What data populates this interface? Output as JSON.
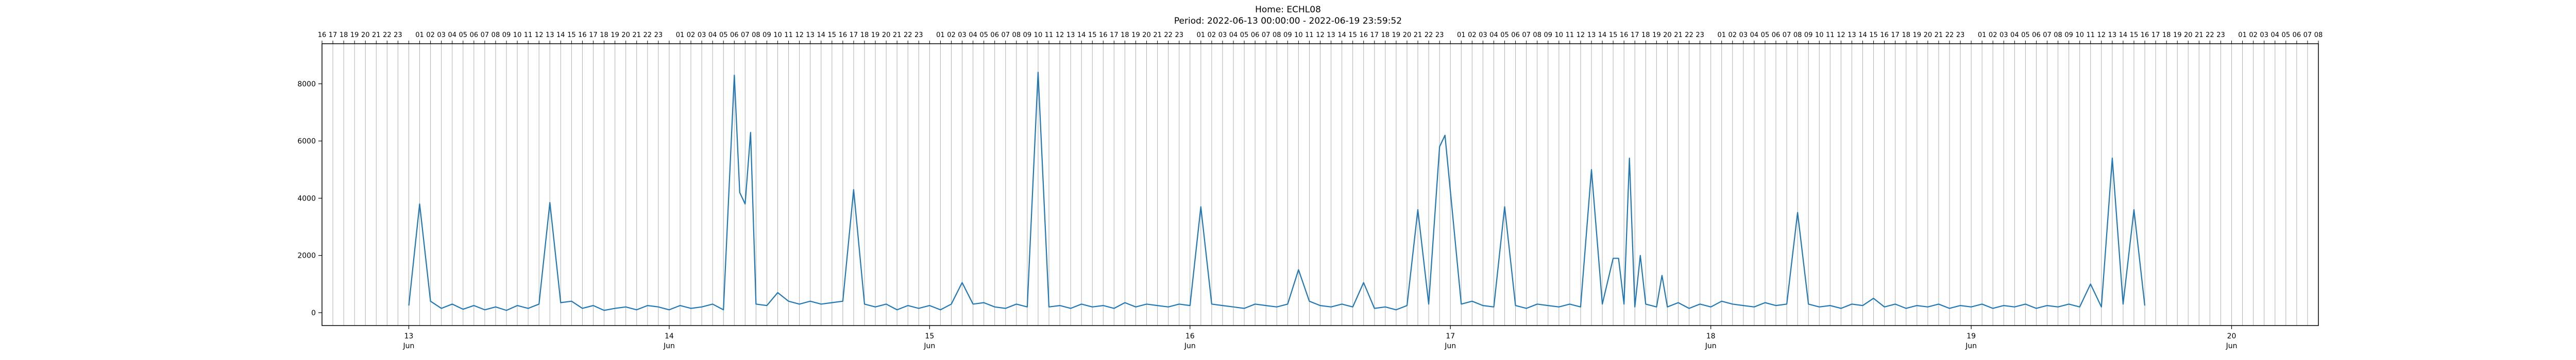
{
  "chart_data": {
    "type": "line",
    "title": "Home: ECHL08",
    "subtitle": "Period: 2022-06-13 00:00:00 - 2022-06-19 23:59:52",
    "xlabel": "",
    "ylabel": "",
    "xlim": [
      "2022-06-12 16:00",
      "2022-06-20 08:00"
    ],
    "ylim": [
      -450,
      9400
    ],
    "grid": "vertical hourly lines",
    "legend": "none",
    "line_color": "#1f77b4",
    "y_ticks": [
      0,
      2000,
      4000,
      6000,
      8000
    ],
    "x_ticks": [
      {
        "day": "13",
        "month": "Jun",
        "date": "2022-06-13 00:00"
      },
      {
        "day": "14",
        "month": "Jun",
        "date": "2022-06-14 00:00"
      },
      {
        "day": "15",
        "month": "Jun",
        "date": "2022-06-15 00:00"
      },
      {
        "day": "16",
        "month": "Jun",
        "date": "2022-06-16 00:00"
      },
      {
        "day": "17",
        "month": "Jun",
        "date": "2022-06-17 00:00"
      },
      {
        "day": "18",
        "month": "Jun",
        "date": "2022-06-18 00:00"
      },
      {
        "day": "19",
        "month": "Jun",
        "date": "2022-06-19 00:00"
      },
      {
        "day": "20",
        "month": "Jun",
        "date": "2022-06-20 00:00"
      }
    ],
    "top_axis_hours": [
      "16",
      "17",
      "18",
      "19",
      "20",
      "21",
      "22",
      "23",
      "",
      "01",
      "02",
      "03",
      "04",
      "05",
      "06",
      "07",
      "08",
      "09",
      "10",
      "11",
      "12",
      "13",
      "14",
      "15",
      "16",
      "17",
      "18",
      "19",
      "20",
      "21",
      "22",
      "23",
      "",
      "01",
      "02",
      "03",
      "04",
      "05",
      "06",
      "07",
      "08",
      "09",
      "10",
      "11",
      "12",
      "13",
      "14",
      "15",
      "16",
      "17",
      "18",
      "19",
      "20",
      "21",
      "22",
      "23",
      "",
      "01",
      "02",
      "03",
      "04",
      "05",
      "06",
      "07",
      "08",
      "09",
      "10",
      "11",
      "12",
      "13",
      "14",
      "15",
      "16",
      "17",
      "18",
      "19",
      "20",
      "21",
      "22",
      "23",
      "",
      "01",
      "02",
      "03",
      "04",
      "05",
      "06",
      "07",
      "08",
      "09",
      "10",
      "11",
      "12",
      "13",
      "14",
      "15",
      "16",
      "17",
      "18",
      "19",
      "20",
      "21",
      "22",
      "23",
      "",
      "01",
      "02",
      "03",
      "04",
      "05",
      "06",
      "07",
      "08",
      "09",
      "10",
      "11",
      "12",
      "13",
      "14",
      "15",
      "16",
      "17",
      "18",
      "19",
      "20",
      "21",
      "22",
      "23",
      "",
      "01",
      "02",
      "03",
      "04",
      "05",
      "06",
      "07",
      "08",
      "09",
      "10",
      "11",
      "12",
      "13",
      "14",
      "15",
      "16",
      "17",
      "18",
      "19",
      "20",
      "21",
      "22",
      "23",
      "",
      "01",
      "02",
      "03",
      "04",
      "05",
      "06",
      "07",
      "08",
      "09",
      "10",
      "11",
      "12",
      "13",
      "14",
      "15",
      "16",
      "17",
      "18",
      "19",
      "20",
      "21",
      "22",
      "23",
      "",
      "01",
      "02",
      "03",
      "04",
      "05",
      "06",
      "07",
      "08"
    ],
    "series": [
      {
        "values": [
          [
            "2022-06-13 00:00",
            250
          ],
          [
            "2022-06-13 01:00",
            3800
          ],
          [
            "2022-06-13 02:00",
            400
          ],
          [
            "2022-06-13 03:00",
            150
          ],
          [
            "2022-06-13 04:00",
            300
          ],
          [
            "2022-06-13 05:00",
            120
          ],
          [
            "2022-06-13 06:00",
            250
          ],
          [
            "2022-06-13 07:00",
            100
          ],
          [
            "2022-06-13 08:00",
            200
          ],
          [
            "2022-06-13 09:00",
            80
          ],
          [
            "2022-06-13 10:00",
            250
          ],
          [
            "2022-06-13 11:00",
            150
          ],
          [
            "2022-06-13 12:00",
            300
          ],
          [
            "2022-06-13 13:00",
            3850
          ],
          [
            "2022-06-13 14:00",
            350
          ],
          [
            "2022-06-13 15:00",
            400
          ],
          [
            "2022-06-13 16:00",
            150
          ],
          [
            "2022-06-13 17:00",
            250
          ],
          [
            "2022-06-13 18:00",
            80
          ],
          [
            "2022-06-13 19:00",
            150
          ],
          [
            "2022-06-13 20:00",
            200
          ],
          [
            "2022-06-13 21:00",
            100
          ],
          [
            "2022-06-13 22:00",
            250
          ],
          [
            "2022-06-13 23:00",
            200
          ],
          [
            "2022-06-14 00:00",
            100
          ],
          [
            "2022-06-14 01:00",
            250
          ],
          [
            "2022-06-14 02:00",
            150
          ],
          [
            "2022-06-14 03:00",
            200
          ],
          [
            "2022-06-14 04:00",
            300
          ],
          [
            "2022-06-14 05:00",
            100
          ],
          [
            "2022-06-14 06:00",
            8300
          ],
          [
            "2022-06-14 06:30",
            4200
          ],
          [
            "2022-06-14 07:00",
            3800
          ],
          [
            "2022-06-14 07:30",
            6300
          ],
          [
            "2022-06-14 08:00",
            300
          ],
          [
            "2022-06-14 09:00",
            250
          ],
          [
            "2022-06-14 10:00",
            700
          ],
          [
            "2022-06-14 11:00",
            400
          ],
          [
            "2022-06-14 12:00",
            300
          ],
          [
            "2022-06-14 13:00",
            400
          ],
          [
            "2022-06-14 14:00",
            300
          ],
          [
            "2022-06-14 15:00",
            350
          ],
          [
            "2022-06-14 16:00",
            400
          ],
          [
            "2022-06-14 17:00",
            4300
          ],
          [
            "2022-06-14 18:00",
            300
          ],
          [
            "2022-06-14 19:00",
            200
          ],
          [
            "2022-06-14 20:00",
            300
          ],
          [
            "2022-06-14 21:00",
            100
          ],
          [
            "2022-06-14 22:00",
            250
          ],
          [
            "2022-06-14 23:00",
            150
          ],
          [
            "2022-06-15 00:00",
            250
          ],
          [
            "2022-06-15 01:00",
            100
          ],
          [
            "2022-06-15 02:00",
            300
          ],
          [
            "2022-06-15 03:00",
            1050
          ],
          [
            "2022-06-15 04:00",
            300
          ],
          [
            "2022-06-15 05:00",
            350
          ],
          [
            "2022-06-15 06:00",
            200
          ],
          [
            "2022-06-15 07:00",
            150
          ],
          [
            "2022-06-15 08:00",
            300
          ],
          [
            "2022-06-15 09:00",
            200
          ],
          [
            "2022-06-15 10:00",
            8400
          ],
          [
            "2022-06-15 11:00",
            200
          ],
          [
            "2022-06-15 12:00",
            250
          ],
          [
            "2022-06-15 13:00",
            150
          ],
          [
            "2022-06-15 14:00",
            300
          ],
          [
            "2022-06-15 15:00",
            200
          ],
          [
            "2022-06-15 16:00",
            250
          ],
          [
            "2022-06-15 17:00",
            150
          ],
          [
            "2022-06-15 18:00",
            350
          ],
          [
            "2022-06-15 19:00",
            200
          ],
          [
            "2022-06-15 20:00",
            300
          ],
          [
            "2022-06-15 21:00",
            250
          ],
          [
            "2022-06-15 22:00",
            200
          ],
          [
            "2022-06-15 23:00",
            300
          ],
          [
            "2022-06-16 00:00",
            250
          ],
          [
            "2022-06-16 01:00",
            3700
          ],
          [
            "2022-06-16 02:00",
            300
          ],
          [
            "2022-06-16 03:00",
            250
          ],
          [
            "2022-06-16 04:00",
            200
          ],
          [
            "2022-06-16 05:00",
            150
          ],
          [
            "2022-06-16 06:00",
            300
          ],
          [
            "2022-06-16 07:00",
            250
          ],
          [
            "2022-06-16 08:00",
            200
          ],
          [
            "2022-06-16 09:00",
            300
          ],
          [
            "2022-06-16 10:00",
            1500
          ],
          [
            "2022-06-16 11:00",
            400
          ],
          [
            "2022-06-16 12:00",
            250
          ],
          [
            "2022-06-16 13:00",
            200
          ],
          [
            "2022-06-16 14:00",
            300
          ],
          [
            "2022-06-16 15:00",
            200
          ],
          [
            "2022-06-16 16:00",
            1050
          ],
          [
            "2022-06-16 17:00",
            150
          ],
          [
            "2022-06-16 18:00",
            200
          ],
          [
            "2022-06-16 19:00",
            100
          ],
          [
            "2022-06-16 20:00",
            250
          ],
          [
            "2022-06-16 21:00",
            3600
          ],
          [
            "2022-06-16 22:00",
            300
          ],
          [
            "2022-06-16 23:00",
            5800
          ],
          [
            "2022-06-16 23:30",
            6200
          ],
          [
            "2022-06-17 01:00",
            300
          ],
          [
            "2022-06-17 02:00",
            400
          ],
          [
            "2022-06-17 03:00",
            250
          ],
          [
            "2022-06-17 04:00",
            200
          ],
          [
            "2022-06-17 05:00",
            3700
          ],
          [
            "2022-06-17 06:00",
            250
          ],
          [
            "2022-06-17 07:00",
            150
          ],
          [
            "2022-06-17 08:00",
            300
          ],
          [
            "2022-06-17 09:00",
            250
          ],
          [
            "2022-06-17 10:00",
            200
          ],
          [
            "2022-06-17 11:00",
            300
          ],
          [
            "2022-06-17 12:00",
            200
          ],
          [
            "2022-06-17 13:00",
            5000
          ],
          [
            "2022-06-17 14:00",
            300
          ],
          [
            "2022-06-17 15:00",
            1900
          ],
          [
            "2022-06-17 15:30",
            1900
          ],
          [
            "2022-06-17 16:00",
            300
          ],
          [
            "2022-06-17 16:30",
            5400
          ],
          [
            "2022-06-17 17:00",
            200
          ],
          [
            "2022-06-17 17:30",
            2000
          ],
          [
            "2022-06-17 18:00",
            300
          ],
          [
            "2022-06-17 19:00",
            200
          ],
          [
            "2022-06-17 19:30",
            1300
          ],
          [
            "2022-06-17 20:00",
            200
          ],
          [
            "2022-06-17 21:00",
            350
          ],
          [
            "2022-06-17 22:00",
            150
          ],
          [
            "2022-06-17 23:00",
            300
          ],
          [
            "2022-06-18 00:00",
            200
          ],
          [
            "2022-06-18 01:00",
            400
          ],
          [
            "2022-06-18 02:00",
            300
          ],
          [
            "2022-06-18 03:00",
            250
          ],
          [
            "2022-06-18 04:00",
            200
          ],
          [
            "2022-06-18 05:00",
            350
          ],
          [
            "2022-06-18 06:00",
            250
          ],
          [
            "2022-06-18 07:00",
            300
          ],
          [
            "2022-06-18 08:00",
            3500
          ],
          [
            "2022-06-18 09:00",
            300
          ],
          [
            "2022-06-18 10:00",
            200
          ],
          [
            "2022-06-18 11:00",
            250
          ],
          [
            "2022-06-18 12:00",
            150
          ],
          [
            "2022-06-18 13:00",
            300
          ],
          [
            "2022-06-18 14:00",
            250
          ],
          [
            "2022-06-18 15:00",
            500
          ],
          [
            "2022-06-18 16:00",
            200
          ],
          [
            "2022-06-18 17:00",
            300
          ],
          [
            "2022-06-18 18:00",
            150
          ],
          [
            "2022-06-18 19:00",
            250
          ],
          [
            "2022-06-18 20:00",
            200
          ],
          [
            "2022-06-18 21:00",
            300
          ],
          [
            "2022-06-18 22:00",
            150
          ],
          [
            "2022-06-18 23:00",
            250
          ],
          [
            "2022-06-19 00:00",
            200
          ],
          [
            "2022-06-19 01:00",
            300
          ],
          [
            "2022-06-19 02:00",
            150
          ],
          [
            "2022-06-19 03:00",
            250
          ],
          [
            "2022-06-19 04:00",
            200
          ],
          [
            "2022-06-19 05:00",
            300
          ],
          [
            "2022-06-19 06:00",
            150
          ],
          [
            "2022-06-19 07:00",
            250
          ],
          [
            "2022-06-19 08:00",
            200
          ],
          [
            "2022-06-19 09:00",
            300
          ],
          [
            "2022-06-19 10:00",
            200
          ],
          [
            "2022-06-19 11:00",
            1000
          ],
          [
            "2022-06-19 12:00",
            200
          ],
          [
            "2022-06-19 13:00",
            5400
          ],
          [
            "2022-06-19 14:00",
            300
          ],
          [
            "2022-06-19 15:00",
            3600
          ],
          [
            "2022-06-19 16:00",
            250
          ]
        ]
      }
    ]
  }
}
